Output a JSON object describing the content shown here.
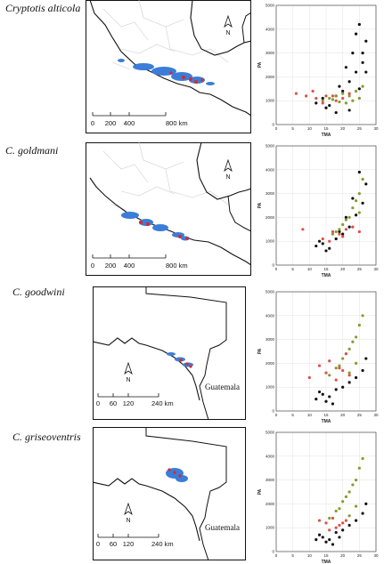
{
  "panels": [
    {
      "species": "Cryptotis alticola",
      "north_label": "N",
      "scalebar": {
        "ticks": [
          "0",
          "200",
          "400",
          "800 km"
        ]
      },
      "country_label": ""
    },
    {
      "species": "C. goldmani",
      "north_label": "N",
      "scalebar": {
        "ticks": [
          "0",
          "200",
          "400",
          "800 km"
        ]
      },
      "country_label": ""
    },
    {
      "species": "C. goodwini",
      "north_label": "N",
      "scalebar": {
        "ticks": [
          "0",
          "60",
          "120",
          "240 km"
        ]
      },
      "country_label": "Guatemala"
    },
    {
      "species": "C. griseoventris",
      "north_label": "N",
      "scalebar": {
        "ticks": [
          "0",
          "60",
          "120",
          "240 km"
        ]
      },
      "country_label": "Guatemala"
    }
  ],
  "colors": {
    "distribution": "#3b7dd8",
    "occurrence": "#d62a2a",
    "background_points": "#111111",
    "suitable_points": "#8a9a2a",
    "records": "#e0504a"
  },
  "chart_data": [
    {
      "type": "scatter",
      "xlabel": "TMA",
      "ylabel": "PA",
      "x_ticks": [
        "0",
        "5",
        "10",
        "15",
        "20",
        "25",
        "30"
      ],
      "y_ticks": [
        "0",
        "1000",
        "2000",
        "3000",
        "4000",
        "5000"
      ],
      "xlim": [
        0,
        30
      ],
      "ylim": [
        0,
        5000
      ],
      "grid": true,
      "series": [
        {
          "color": "#111111",
          "x": [
            12,
            14,
            16,
            18,
            20,
            22,
            24,
            26,
            27,
            25,
            23,
            21,
            19,
            24,
            26,
            27,
            25,
            22,
            18,
            15
          ],
          "y": [
            900,
            1100,
            800,
            1200,
            1400,
            1800,
            2200,
            2600,
            3500,
            4200,
            3000,
            2400,
            1600,
            3800,
            3000,
            2200,
            1500,
            600,
            500,
            700
          ]
        },
        {
          "color": "#8a9a2a",
          "x": [
            14,
            16,
            18,
            20,
            22,
            24,
            26,
            23,
            25,
            21,
            19,
            17
          ],
          "y": [
            1000,
            1100,
            1200,
            1300,
            1200,
            1400,
            1600,
            1000,
            1100,
            900,
            950,
            1050
          ]
        },
        {
          "color": "#e0504a",
          "x": [
            6,
            9,
            12,
            15,
            18,
            20,
            22,
            11,
            14,
            17
          ],
          "y": [
            1300,
            1200,
            1100,
            1200,
            1000,
            1100,
            1300,
            1400,
            900,
            1200
          ]
        }
      ]
    },
    {
      "type": "scatter",
      "xlabel": "TMA",
      "ylabel": "PA",
      "x_ticks": [
        "0",
        "5",
        "10",
        "15",
        "20",
        "25",
        "30"
      ],
      "y_ticks": [
        "0",
        "1000",
        "2000",
        "3000",
        "4000",
        "5000"
      ],
      "xlim": [
        0,
        30
      ],
      "ylim": [
        0,
        5000
      ],
      "grid": true,
      "series": [
        {
          "color": "#111111",
          "x": [
            12,
            14,
            16,
            18,
            20,
            22,
            24,
            26,
            27,
            25,
            23,
            21,
            19,
            15,
            13
          ],
          "y": [
            800,
            900,
            700,
            1100,
            1300,
            1600,
            2100,
            2600,
            3400,
            3900,
            2800,
            2000,
            1400,
            600,
            1000
          ]
        },
        {
          "color": "#8a9a2a",
          "x": [
            17,
            19,
            21,
            23,
            25,
            26,
            24,
            22,
            20,
            18,
            25,
            23
          ],
          "y": [
            1300,
            1500,
            1900,
            2400,
            3000,
            3600,
            2700,
            2000,
            1700,
            1400,
            2200,
            1600
          ]
        },
        {
          "color": "#e0504a",
          "x": [
            8,
            14,
            17,
            19,
            21,
            23,
            25,
            20,
            16
          ],
          "y": [
            1500,
            1100,
            1400,
            1300,
            1500,
            1600,
            1400,
            1200,
            1000
          ]
        }
      ]
    },
    {
      "type": "scatter",
      "xlabel": "TMA",
      "ylabel": "PA",
      "x_ticks": [
        "0",
        "5",
        "10",
        "15",
        "20",
        "25",
        "30"
      ],
      "y_ticks": [
        "0",
        "1000",
        "2000",
        "3000",
        "4000",
        "5000"
      ],
      "xlim": [
        0,
        30
      ],
      "ylim": [
        0,
        5000
      ],
      "grid": true,
      "series": [
        {
          "color": "#111111",
          "x": [
            12,
            14,
            16,
            18,
            20,
            22,
            24,
            26,
            27,
            15,
            13,
            17
          ],
          "y": [
            500,
            700,
            600,
            900,
            1000,
            1200,
            1400,
            1700,
            2200,
            400,
            800,
            300
          ]
        },
        {
          "color": "#8a9a2a",
          "x": [
            16,
            18,
            20,
            22,
            24,
            25,
            26,
            23,
            21,
            19,
            24,
            22
          ],
          "y": [
            1500,
            1800,
            2200,
            2600,
            3100,
            3600,
            4000,
            2900,
            2400,
            1900,
            2000,
            1600
          ]
        },
        {
          "color": "#e0504a",
          "x": [
            10,
            13,
            16,
            19,
            22,
            18,
            21,
            15,
            20
          ],
          "y": [
            1400,
            1900,
            2100,
            1800,
            1500,
            1300,
            2400,
            1600,
            1700
          ]
        }
      ]
    },
    {
      "type": "scatter",
      "xlabel": "TMA",
      "ylabel": "PA",
      "x_ticks": [
        "0",
        "5",
        "10",
        "15",
        "20",
        "25",
        "30"
      ],
      "y_ticks": [
        "0",
        "1000",
        "2000",
        "3000",
        "4000",
        "5000"
      ],
      "xlim": [
        0,
        30
      ],
      "ylim": [
        0,
        5000
      ],
      "grid": true,
      "series": [
        {
          "color": "#111111",
          "x": [
            12,
            14,
            16,
            18,
            20,
            22,
            24,
            26,
            27,
            15,
            13,
            17,
            19
          ],
          "y": [
            500,
            600,
            500,
            800,
            900,
            1100,
            1300,
            1600,
            2000,
            400,
            700,
            300,
            600
          ]
        },
        {
          "color": "#8a9a2a",
          "x": [
            16,
            18,
            20,
            22,
            24,
            25,
            26,
            23,
            21,
            19,
            24,
            22
          ],
          "y": [
            1400,
            1700,
            2100,
            2500,
            3000,
            3500,
            3900,
            2800,
            2300,
            1800,
            1900,
            1500
          ]
        },
        {
          "color": "#e0504a",
          "x": [
            13,
            15,
            17,
            19,
            21,
            18,
            16,
            20
          ],
          "y": [
            1300,
            1200,
            1400,
            1100,
            1300,
            1000,
            900,
            1200
          ]
        }
      ]
    }
  ]
}
